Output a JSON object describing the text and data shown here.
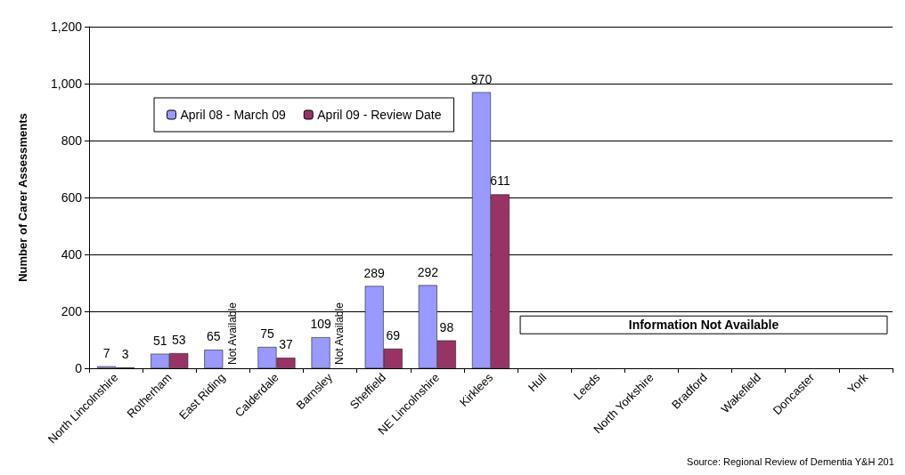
{
  "chart_data": {
    "type": "bar",
    "ylabel": "Number of Carer Assessments",
    "categories": [
      "North Lincolnshire",
      "Rotherham",
      "East Riding",
      "Calderdale",
      "Barnsley",
      "Sheffield",
      "NE Lincolnshire",
      "Kirklees",
      "Hull",
      "Leeds",
      "North Yorkshire",
      "Bradford",
      "Wakefield",
      "Doncaster",
      "York"
    ],
    "series": [
      {
        "name": "April 08 - March 09",
        "color": "#9999ff",
        "values": [
          7,
          51,
          65,
          75,
          109,
          289,
          292,
          970,
          null,
          null,
          null,
          null,
          null,
          null,
          null
        ]
      },
      {
        "name": "April 09 - Review Date",
        "color": "#993366",
        "values": [
          3,
          53,
          null,
          37,
          null,
          69,
          98,
          611,
          null,
          null,
          null,
          null,
          null,
          null,
          null
        ]
      }
    ],
    "ylim": [
      0,
      1200
    ],
    "yticks": [
      0,
      200,
      400,
      600,
      800,
      {
        "value": 1000,
        "label": "1,000"
      },
      {
        "value": 1200,
        "label": "1,200"
      }
    ],
    "grid": "y",
    "legend": "top left",
    "data_labels": true,
    "annotations": [
      {
        "text": "Not Available",
        "x": "East Riding",
        "y": 0
      },
      {
        "text": "Not Available",
        "x": "Barnsley",
        "y": 0
      },
      "Information Not Available",
      "Source: Regional Review of Dementia Y&H 201"
    ]
  }
}
